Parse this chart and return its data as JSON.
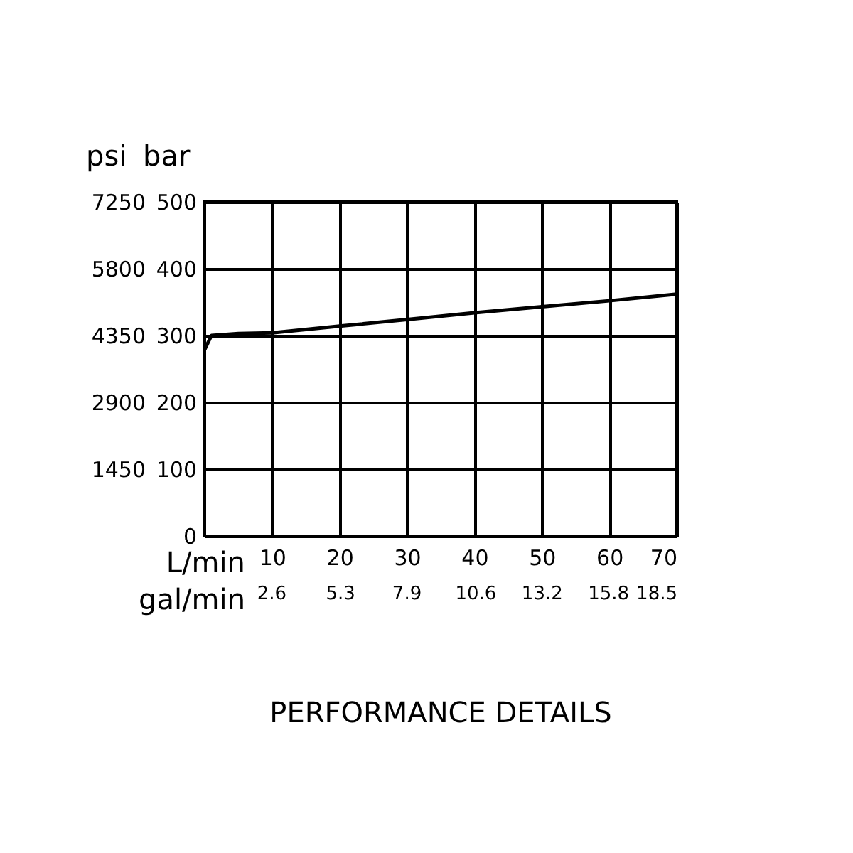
{
  "chart_data": {
    "type": "line",
    "title": "PERFORMANCE DETAILS",
    "xlabel": "L/min",
    "ylabel": "bar",
    "y2label": "psi",
    "x2label": "gal/min",
    "x": [
      0,
      1,
      5,
      10,
      20,
      30,
      40,
      50,
      60,
      70
    ],
    "series": [
      {
        "color": "#000000",
        "values": [
          279,
          300,
          303,
          304,
          314,
          324,
          334,
          343,
          352,
          362
        ]
      }
    ],
    "xlim": [
      0,
      70
    ],
    "xticks": [
      10,
      20,
      30,
      40,
      50,
      60,
      70
    ],
    "x2lim": [
      0,
      18.5
    ],
    "x2ticks": [
      2.6,
      5.3,
      7.9,
      10.6,
      13.2,
      15.8,
      18.5
    ],
    "ylim": [
      0,
      500
    ],
    "yticks": [
      0,
      100,
      200,
      300,
      400,
      500
    ],
    "y2lim": [
      0,
      7250
    ],
    "y2ticks": [
      1450,
      2900,
      4350,
      5800,
      7250
    ],
    "grid": true,
    "marker": "none",
    "line_style": "solid"
  }
}
